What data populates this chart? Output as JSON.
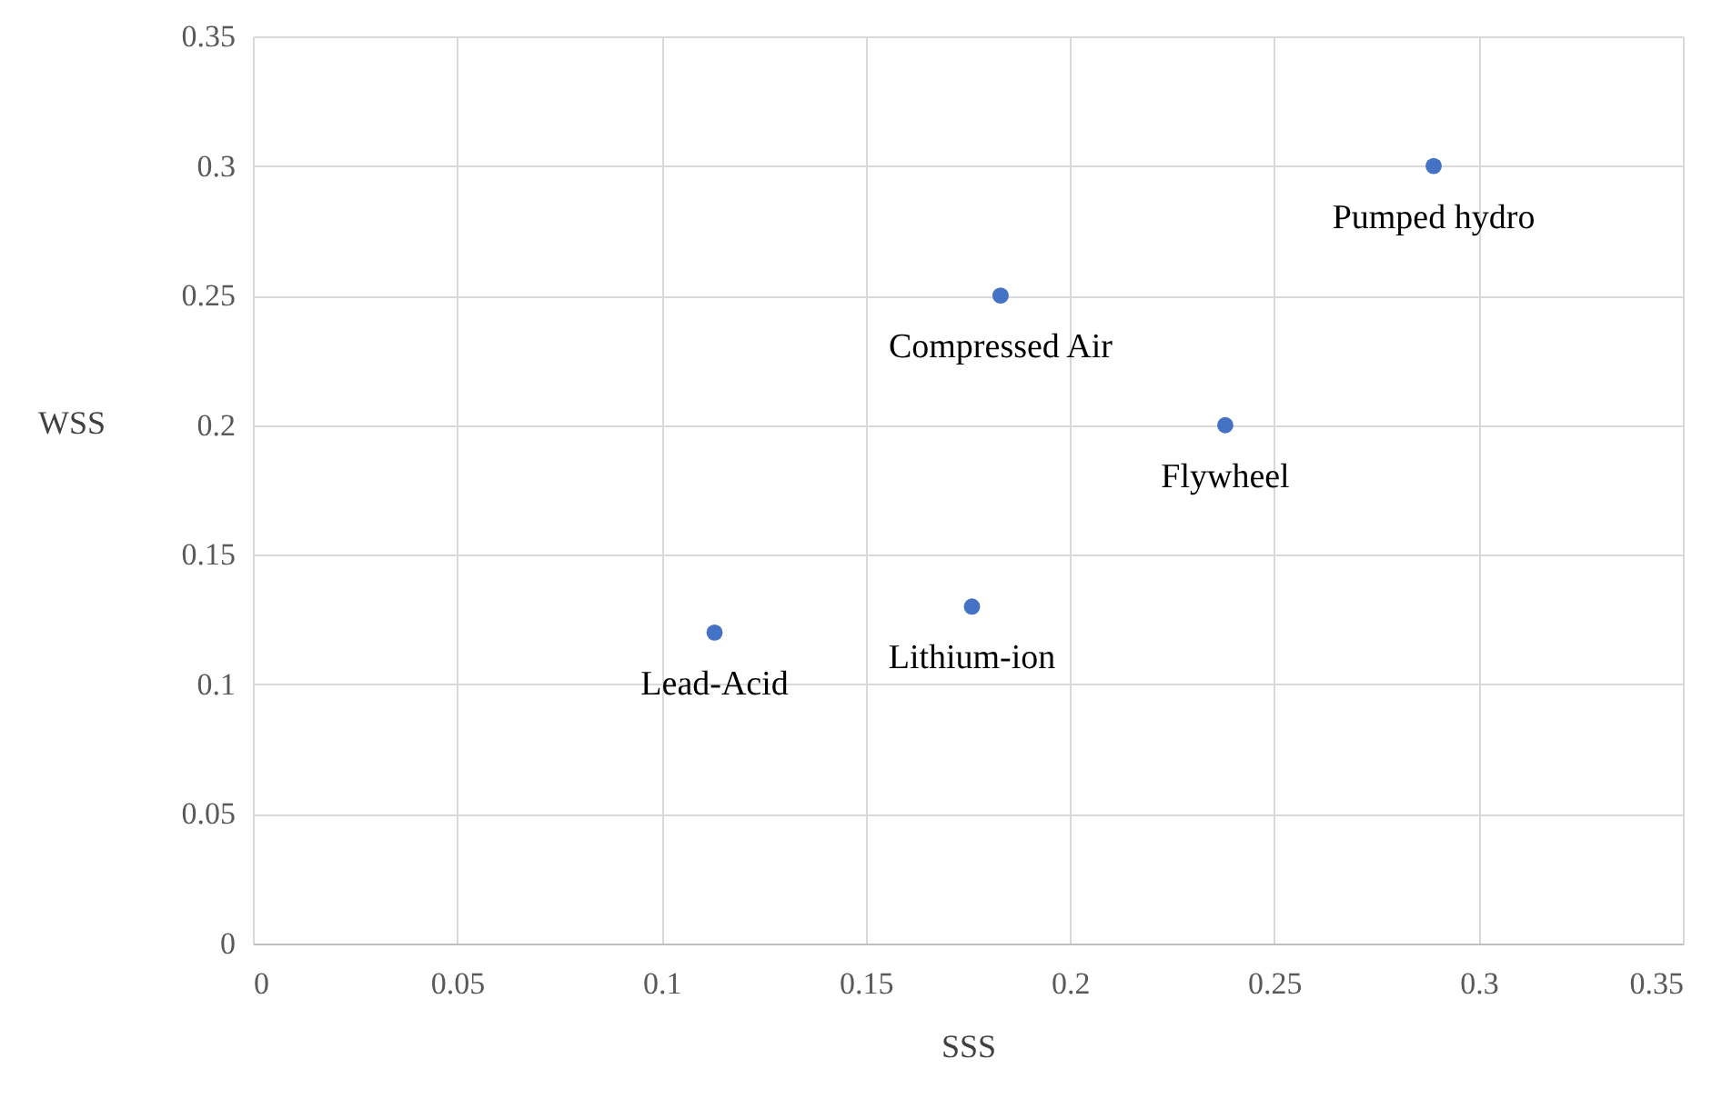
{
  "chart_data": {
    "type": "scatter",
    "xlabel": "SSS",
    "ylabel": "WSS",
    "x": [
      0.113,
      0.176,
      0.183,
      0.238,
      0.289
    ],
    "values": [
      0.12,
      0.13,
      0.25,
      0.2,
      0.3
    ],
    "color": "#4472c4",
    "annotations": [
      {
        "text": "Lead-Acid",
        "x": 0.113,
        "y": 0.12
      },
      {
        "text": "Lithium-ion",
        "x": 0.176,
        "y": 0.13
      },
      {
        "text": "Compressed Air",
        "x": 0.183,
        "y": 0.25
      },
      {
        "text": "Flywheel",
        "x": 0.238,
        "y": 0.2
      },
      {
        "text": "Pumped hydro",
        "x": 0.289,
        "y": 0.3
      }
    ],
    "xlim": [
      0,
      0.35
    ],
    "xticks": [
      0,
      0.05,
      0.1,
      0.15,
      0.2,
      0.25,
      0.3,
      0.35
    ],
    "ylim": [
      0,
      0.35
    ],
    "yticks": [
      0,
      0.05,
      0.1,
      0.15,
      0.2,
      0.25,
      0.3,
      0.35
    ],
    "grid": true,
    "marker": "circle"
  }
}
